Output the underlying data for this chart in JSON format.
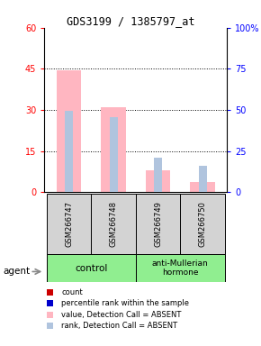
{
  "title": "GDS3199 / 1385797_at",
  "samples": [
    "GSM266747",
    "GSM266748",
    "GSM266749",
    "GSM266750"
  ],
  "pink_bars": [
    44.5,
    31.0,
    8.0,
    3.5
  ],
  "blue_bars": [
    29.5,
    27.5,
    12.5,
    9.5
  ],
  "pink_color": "#ffb6c1",
  "light_blue_color": "#b0c4de",
  "red_color": "#cc0000",
  "dark_blue_color": "#0000cc",
  "left_ylim": [
    0,
    60
  ],
  "right_ylim": [
    0,
    100
  ],
  "left_yticks": [
    0,
    15,
    30,
    45,
    60
  ],
  "right_yticks": [
    0,
    25,
    50,
    75,
    100
  ],
  "left_yticklabels": [
    "0",
    "15",
    "30",
    "45",
    "60"
  ],
  "right_yticklabels": [
    "0",
    "25",
    "50",
    "75",
    "100%"
  ],
  "dotted_lines": [
    15,
    30,
    45
  ],
  "legend_items": [
    {
      "label": "count",
      "color": "#cc0000"
    },
    {
      "label": "percentile rank within the sample",
      "color": "#0000cc"
    },
    {
      "label": "value, Detection Call = ABSENT",
      "color": "#ffb6c1"
    },
    {
      "label": "rank, Detection Call = ABSENT",
      "color": "#b0c4de"
    }
  ],
  "agent_label": "agent",
  "background_color": "#ffffff",
  "grid_color": "#000000"
}
